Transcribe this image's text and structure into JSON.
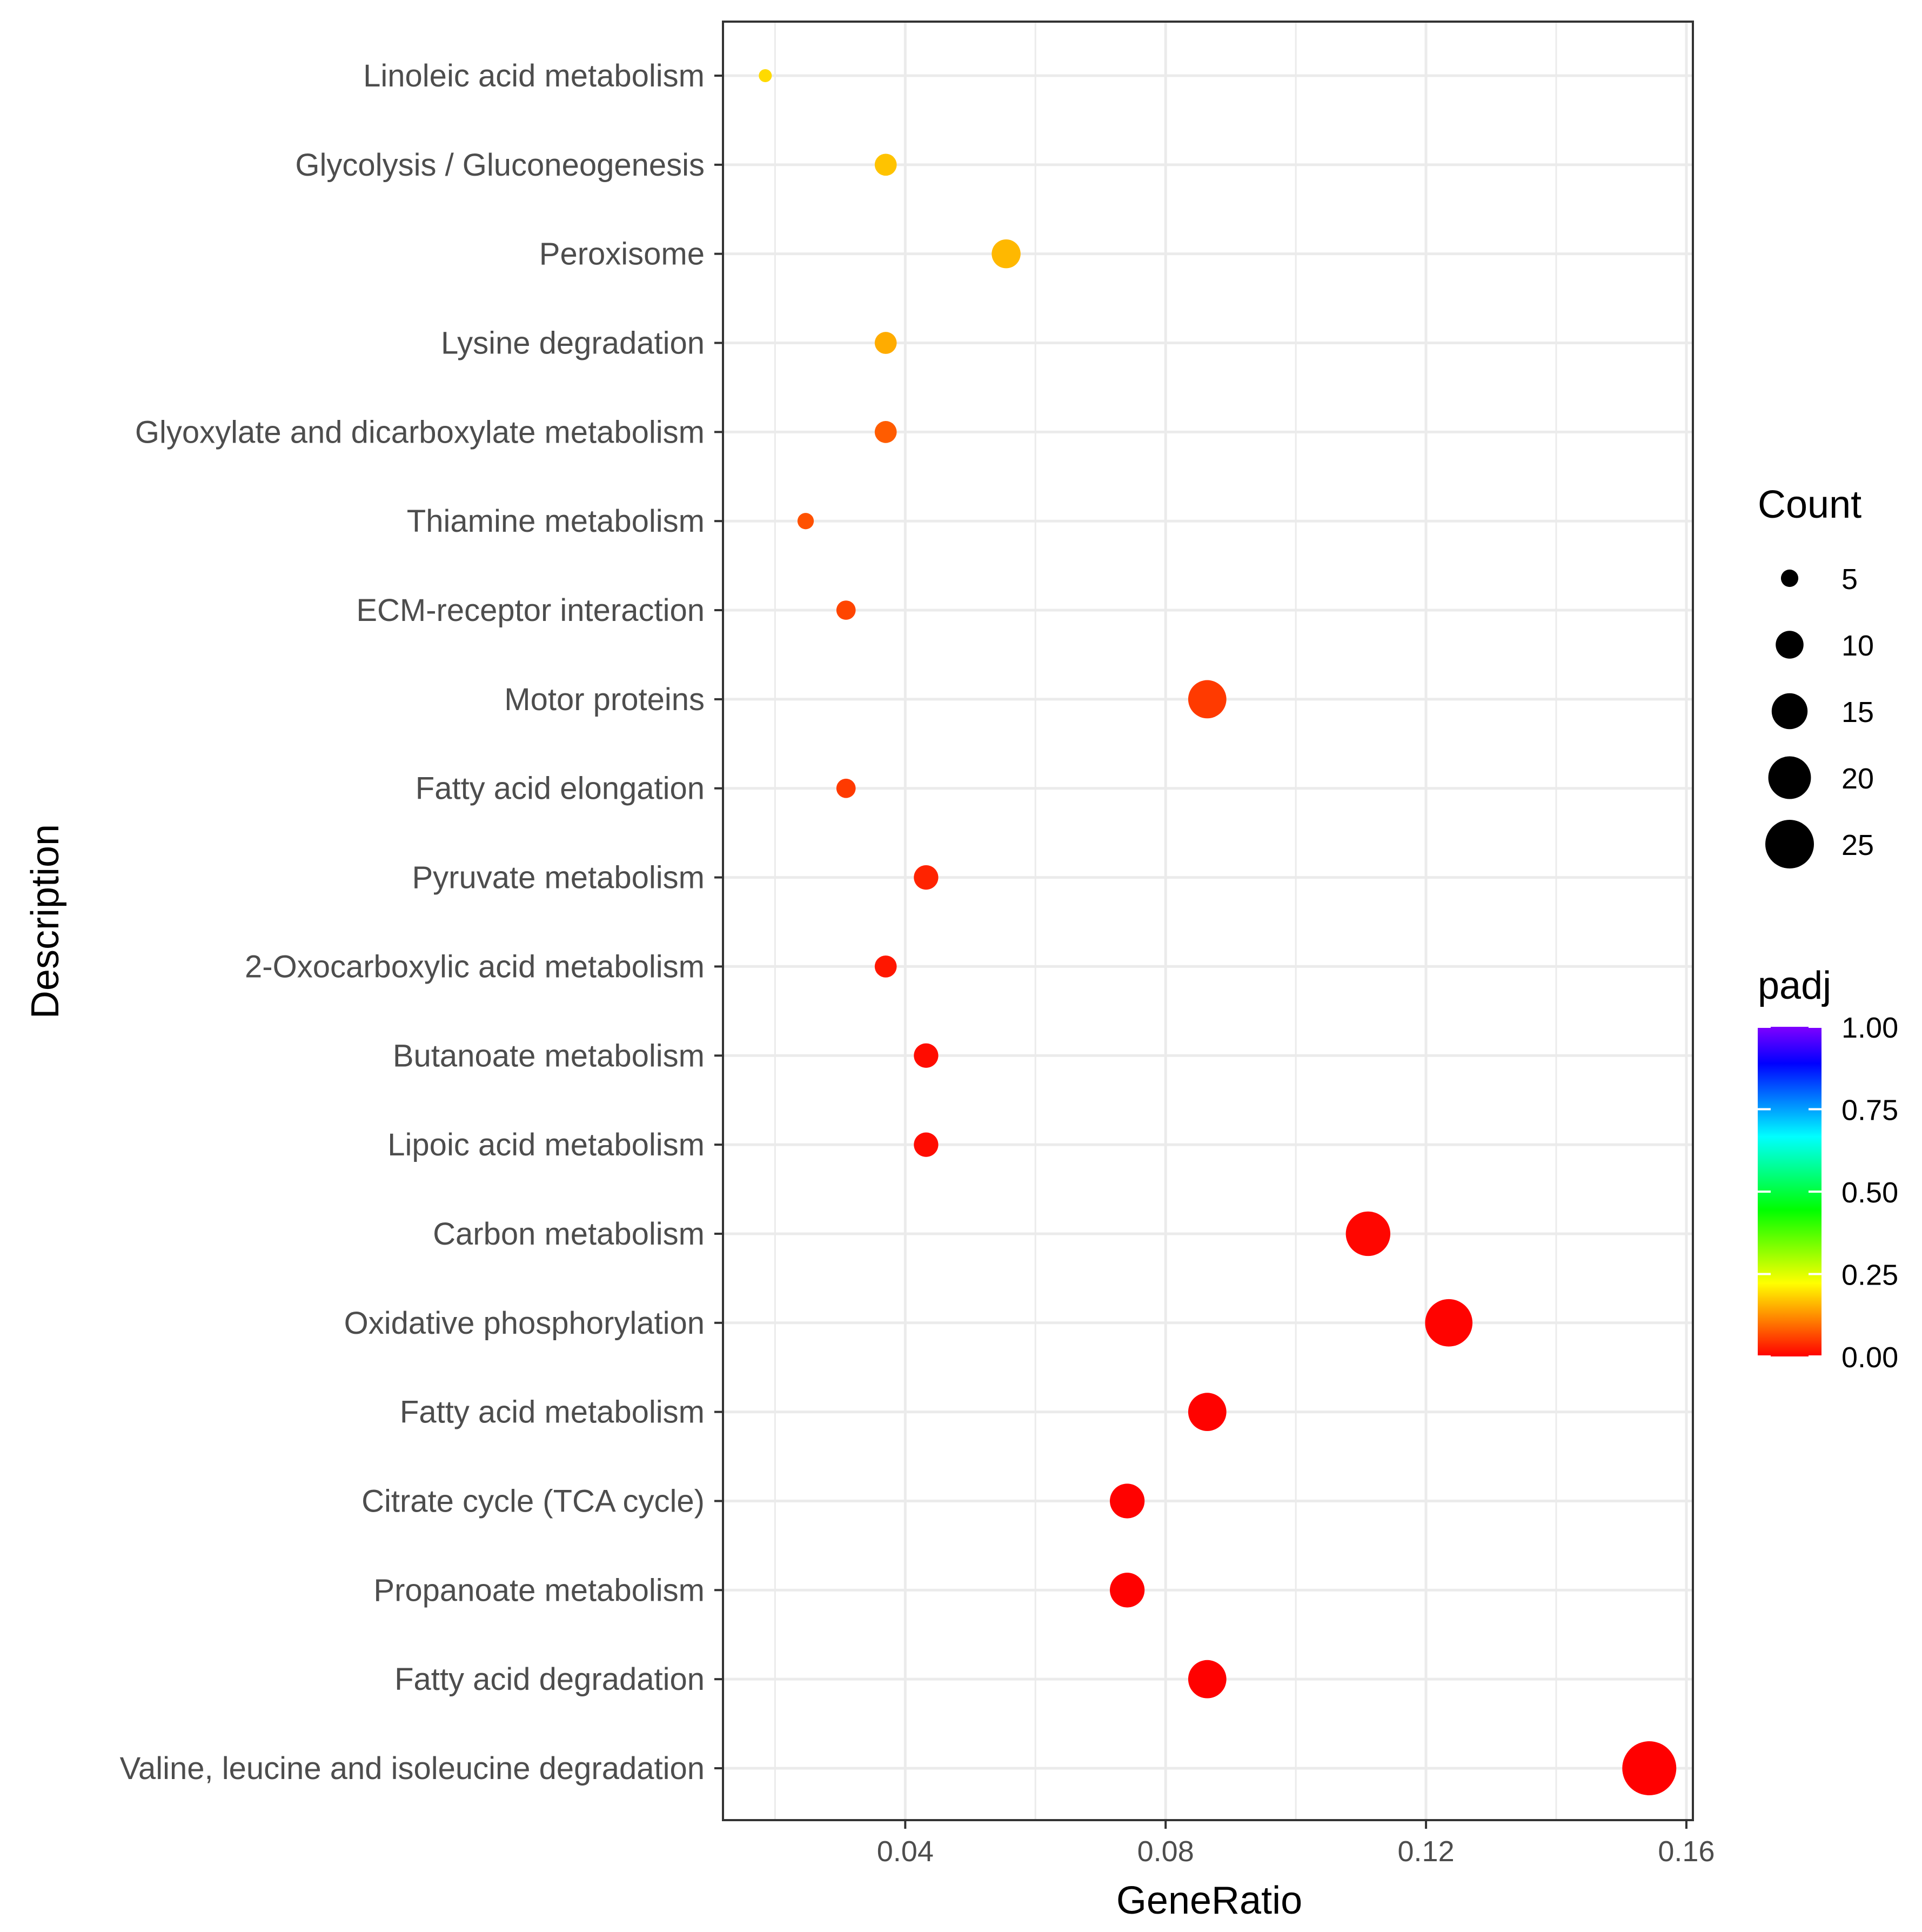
{
  "chart_data": {
    "type": "scatter",
    "title": "",
    "xlabel": "GeneRatio",
    "ylabel": "Description",
    "xlim": [
      0.012,
      0.161
    ],
    "x_ticks": [
      0.04,
      0.08,
      0.12,
      0.16
    ],
    "x_tick_labels": [
      "0.04",
      "0.08",
      "0.12",
      "0.16"
    ],
    "grid": true,
    "points": [
      {
        "description": "Linoleic acid metabolism",
        "gene_ratio": 0.0185,
        "count": 3,
        "padj": 0.19
      },
      {
        "description": "Glycolysis / Gluconeogenesis",
        "gene_ratio": 0.037,
        "count": 6,
        "padj": 0.17
      },
      {
        "description": "Peroxisome",
        "gene_ratio": 0.0555,
        "count": 9,
        "padj": 0.16
      },
      {
        "description": "Lysine degradation",
        "gene_ratio": 0.037,
        "count": 6,
        "padj": 0.15
      },
      {
        "description": "Glyoxylate and dicarboxylate metabolism",
        "gene_ratio": 0.037,
        "count": 6,
        "padj": 0.08
      },
      {
        "description": "Thiamine metabolism",
        "gene_ratio": 0.0247,
        "count": 4,
        "padj": 0.07
      },
      {
        "description": "ECM-receptor interaction",
        "gene_ratio": 0.0309,
        "count": 5,
        "padj": 0.06
      },
      {
        "description": "Motor proteins",
        "gene_ratio": 0.0864,
        "count": 14,
        "padj": 0.05
      },
      {
        "description": "Fatty acid elongation",
        "gene_ratio": 0.0309,
        "count": 5,
        "padj": 0.05
      },
      {
        "description": "Pyruvate metabolism",
        "gene_ratio": 0.0432,
        "count": 7,
        "padj": 0.03
      },
      {
        "description": "2-Oxocarboxylic acid metabolism",
        "gene_ratio": 0.037,
        "count": 6,
        "padj": 0.02
      },
      {
        "description": "Butanoate metabolism",
        "gene_ratio": 0.0432,
        "count": 7,
        "padj": 0.01
      },
      {
        "description": "Lipoic acid metabolism",
        "gene_ratio": 0.0432,
        "count": 7,
        "padj": 0.01
      },
      {
        "description": "Carbon metabolism",
        "gene_ratio": 0.1111,
        "count": 18,
        "padj": 0.005
      },
      {
        "description": "Oxidative phosphorylation",
        "gene_ratio": 0.1235,
        "count": 20,
        "padj": 0.003
      },
      {
        "description": "Fatty acid metabolism",
        "gene_ratio": 0.0864,
        "count": 14,
        "padj": 0.002
      },
      {
        "description": "Citrate cycle (TCA cycle)",
        "gene_ratio": 0.0741,
        "count": 12,
        "padj": 0.002
      },
      {
        "description": "Propanoate metabolism",
        "gene_ratio": 0.0741,
        "count": 12,
        "padj": 0.001
      },
      {
        "description": "Fatty acid degradation",
        "gene_ratio": 0.0864,
        "count": 14,
        "padj": 0.0005
      },
      {
        "description": "Valine, leucine and isoleucine degradation",
        "gene_ratio": 0.1543,
        "count": 25,
        "padj": 0.0001
      }
    ],
    "size_legend": {
      "title": "Count",
      "values": [
        5,
        10,
        15,
        20,
        25
      ],
      "labels": [
        "5",
        "10",
        "15",
        "20",
        "25"
      ]
    },
    "color_legend": {
      "title": "padj",
      "limits": [
        0,
        1
      ],
      "ticks": [
        1.0,
        0.75,
        0.5,
        0.25,
        0.0
      ],
      "tick_labels": [
        "1.00",
        "0.75",
        "0.50",
        "0.25",
        "0.00"
      ],
      "gradient": [
        "#ff0000",
        "#ff8000",
        "#ffff00",
        "#80ff00",
        "#00ff00",
        "#00ff80",
        "#00ffff",
        "#0080ff",
        "#0000ff",
        "#8000ff"
      ]
    },
    "colors": {
      "background": "#ffffff",
      "grid": "#ebebeb",
      "panel_border": "#333333",
      "point_high_padj": "#c8c800",
      "point_low_padj": "#ff0000"
    }
  }
}
